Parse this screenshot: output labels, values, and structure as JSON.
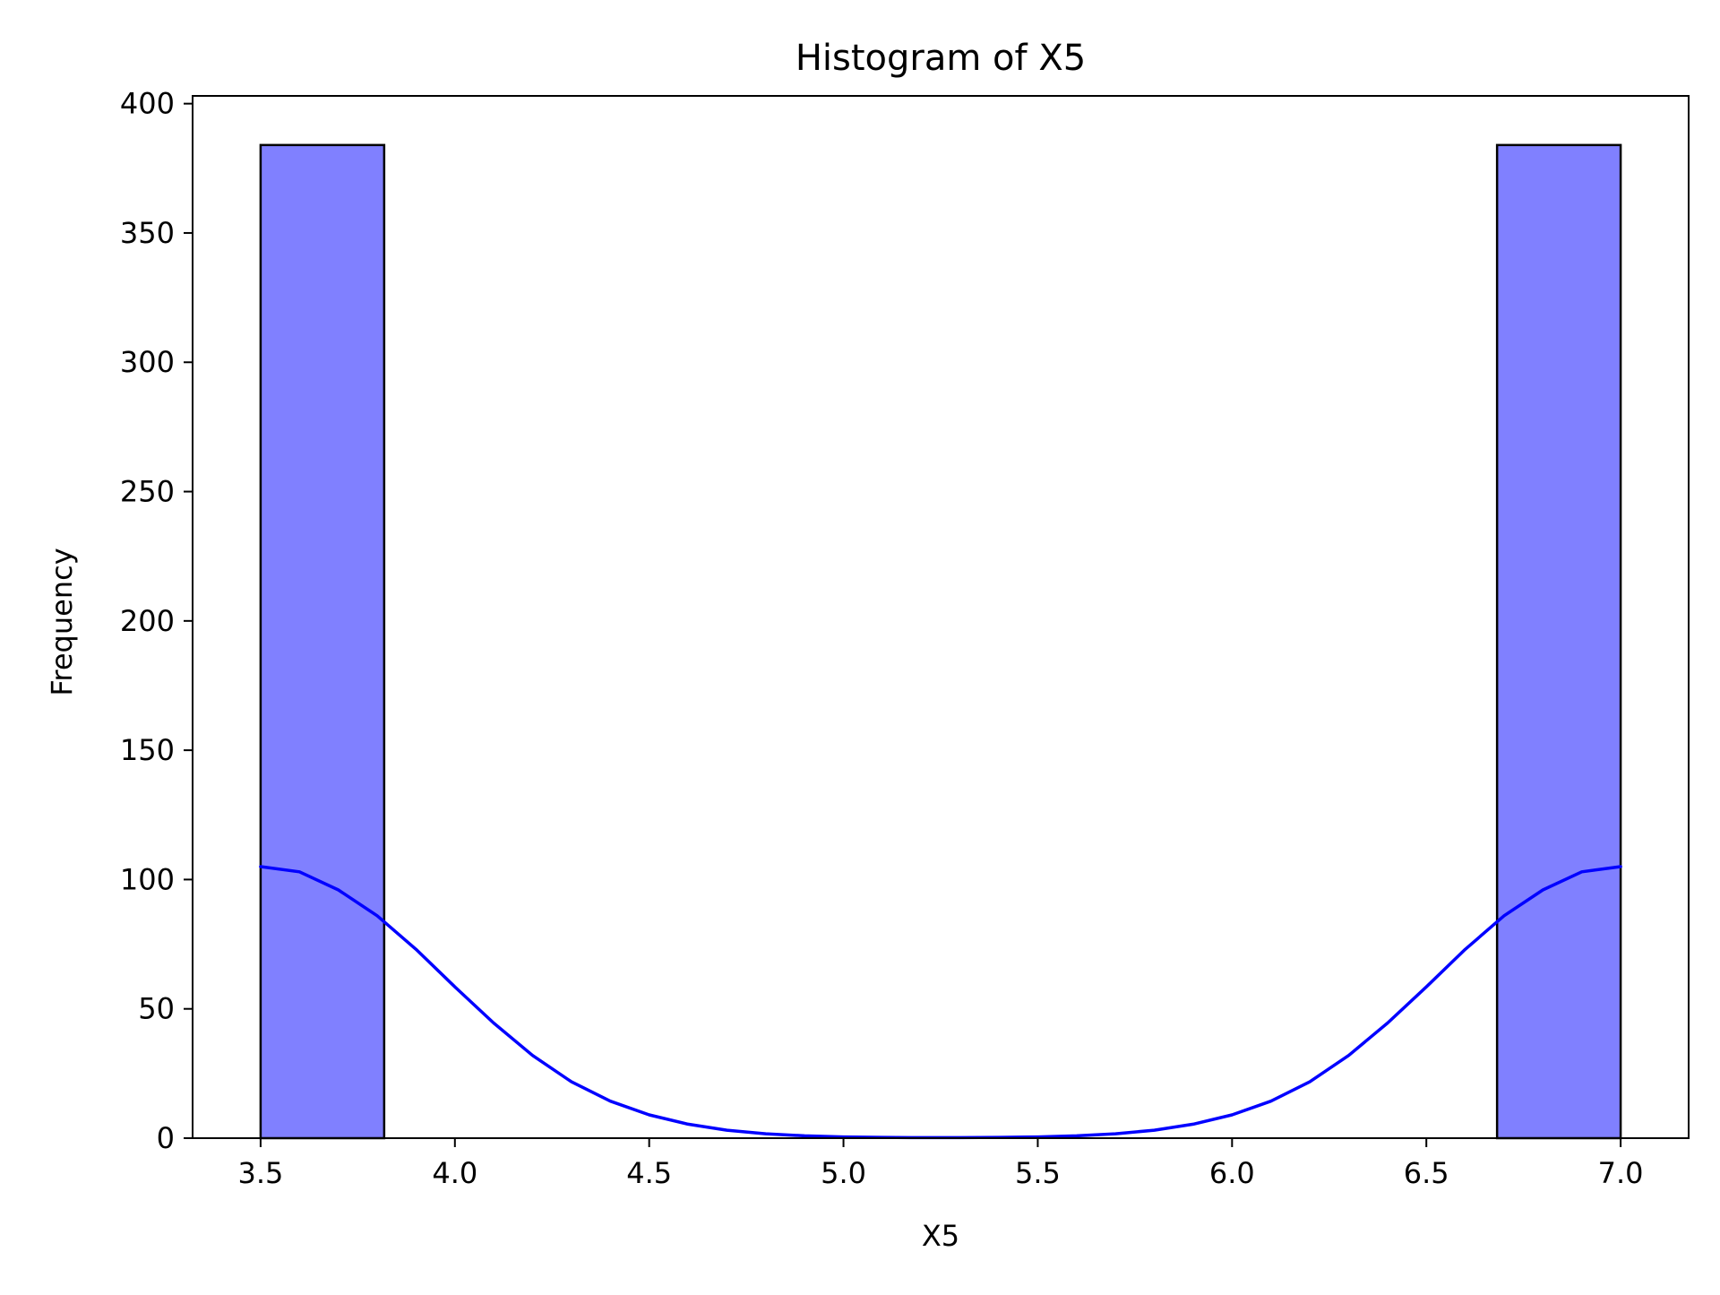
{
  "chart_data": {
    "type": "bar",
    "title": "Histogram of X5",
    "xlabel": "X5",
    "ylabel": "Frequency",
    "xlim": [
      3.325,
      7.175
    ],
    "ylim": [
      0,
      403
    ],
    "xticks": [
      3.5,
      4.0,
      4.5,
      5.0,
      5.5,
      6.0,
      6.5,
      7.0
    ],
    "xtick_labels": [
      "3.5",
      "4.0",
      "4.5",
      "5.0",
      "5.5",
      "6.0",
      "6.5",
      "7.0"
    ],
    "yticks": [
      0,
      50,
      100,
      150,
      200,
      250,
      300,
      350,
      400
    ],
    "ytick_labels": [
      "0",
      "50",
      "100",
      "150",
      "200",
      "250",
      "300",
      "350",
      "400"
    ],
    "bins": [
      {
        "x0": 3.5,
        "x1": 3.818,
        "count": 384
      },
      {
        "x0": 3.818,
        "x1": 4.136,
        "count": 0
      },
      {
        "x0": 4.136,
        "x1": 4.455,
        "count": 0
      },
      {
        "x0": 4.455,
        "x1": 4.773,
        "count": 0
      },
      {
        "x0": 4.773,
        "x1": 5.091,
        "count": 0
      },
      {
        "x0": 5.091,
        "x1": 5.409,
        "count": 0
      },
      {
        "x0": 5.409,
        "x1": 5.727,
        "count": 0
      },
      {
        "x0": 5.727,
        "x1": 6.045,
        "count": 0
      },
      {
        "x0": 6.045,
        "x1": 6.364,
        "count": 0
      },
      {
        "x0": 6.364,
        "x1": 6.682,
        "count": 0
      },
      {
        "x0": 6.682,
        "x1": 7.0,
        "count": 384
      }
    ],
    "kde": {
      "x": [
        3.5,
        3.6,
        3.7,
        3.8,
        3.9,
        4.0,
        4.1,
        4.2,
        4.3,
        4.4,
        4.5,
        4.6,
        4.7,
        4.8,
        4.9,
        5.0,
        5.1,
        5.2,
        5.25,
        5.3,
        5.4,
        5.5,
        5.6,
        5.7,
        5.8,
        5.9,
        6.0,
        6.1,
        6.2,
        6.3,
        6.4,
        6.5,
        6.6,
        6.7,
        6.8,
        6.9,
        7.0
      ],
      "y": [
        105,
        103,
        96,
        86,
        73,
        58.5,
        44.5,
        32,
        21.8,
        14.3,
        9,
        5.4,
        3.1,
        1.7,
        0.9,
        0.5,
        0.3,
        0.2,
        0.2,
        0.2,
        0.3,
        0.5,
        0.9,
        1.7,
        3.1,
        5.4,
        9,
        14.3,
        21.8,
        32,
        44.5,
        58.5,
        73,
        86,
        96,
        103,
        105
      ]
    },
    "bar_color": "#8080ff",
    "bar_edge_color": "#000000",
    "kde_color": "#0000ff",
    "grid": false,
    "legend": "none"
  }
}
